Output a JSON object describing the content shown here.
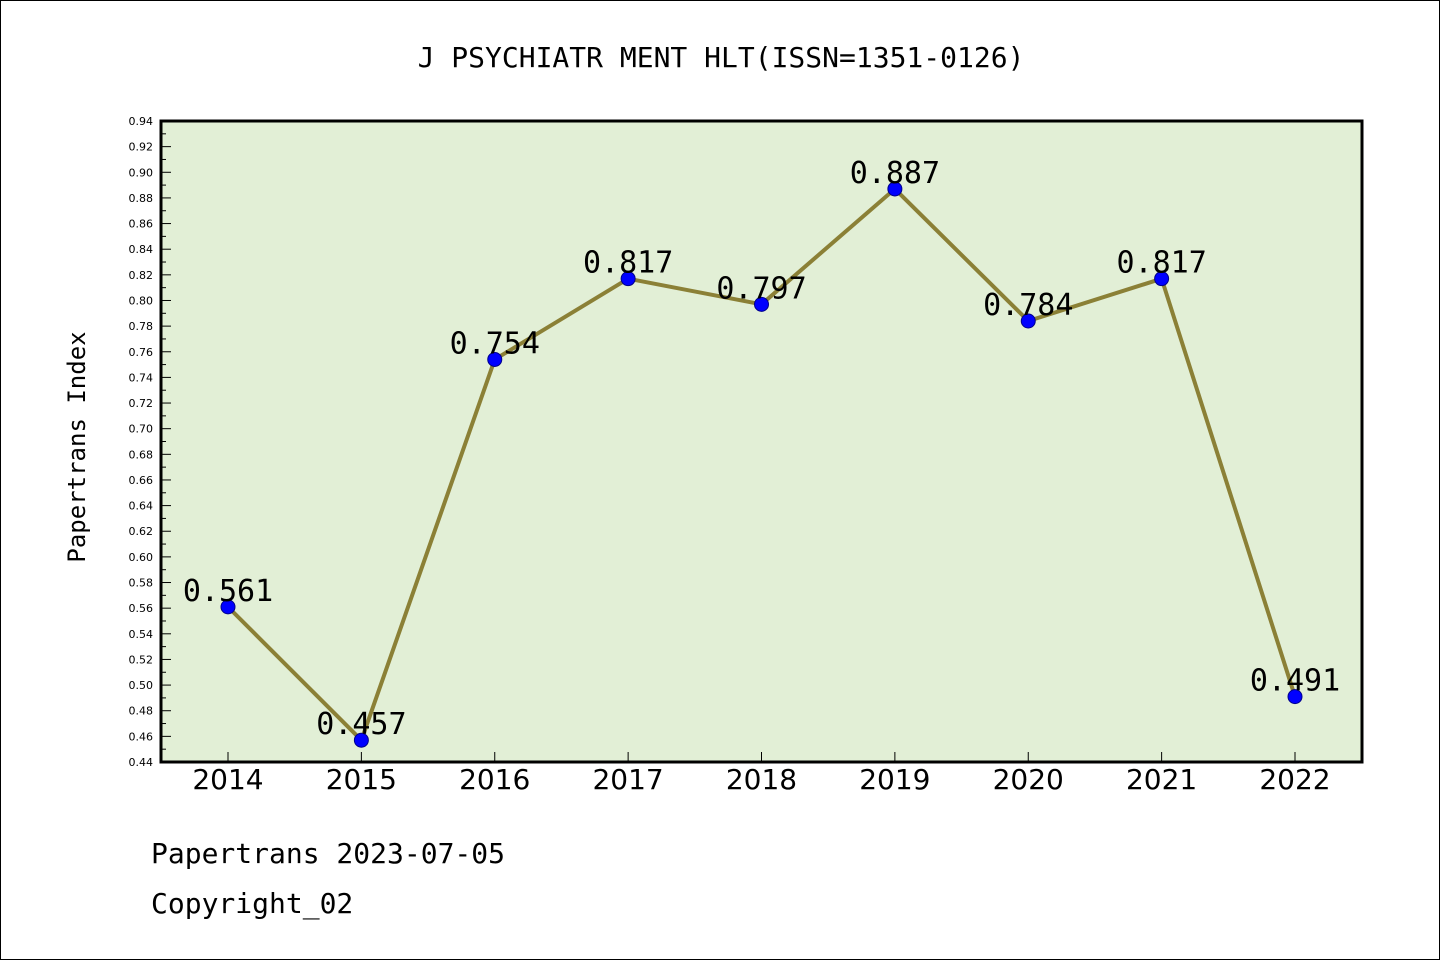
{
  "chart_data": {
    "type": "line",
    "title": "J PSYCHIATR MENT HLT(ISSN=1351-0126)",
    "xlabel": "",
    "ylabel": "Papertrans Index",
    "categories": [
      "2014",
      "2015",
      "2016",
      "2017",
      "2018",
      "2019",
      "2020",
      "2021",
      "2022"
    ],
    "series": [
      {
        "values": [
          0.561,
          0.457,
          0.754,
          0.817,
          0.797,
          0.887,
          0.784,
          0.817,
          0.491
        ],
        "labels": [
          "0.561",
          "0.457",
          "0.754",
          "0.817",
          "0.797",
          "0.887",
          "0.784",
          "0.817",
          "0.491"
        ]
      }
    ],
    "ylim": [
      0.44,
      0.94
    ],
    "yticks": [
      "0.44",
      "0.46",
      "0.48",
      "0.50",
      "0.52",
      "0.54",
      "0.56",
      "0.58",
      "0.60",
      "0.62",
      "0.64",
      "0.66",
      "0.68",
      "0.70",
      "0.72",
      "0.74",
      "0.76",
      "0.78",
      "0.80",
      "0.82",
      "0.84",
      "0.86",
      "0.88",
      "0.90",
      "0.92",
      "0.94"
    ],
    "grid": false,
    "legend": "none",
    "colors": {
      "plot_background": "#e2efd6",
      "line": "#8b8036",
      "marker": "#0000ff"
    }
  },
  "footer": {
    "line1": "Papertrans 2023-07-05",
    "line2": "Copyright_02"
  }
}
